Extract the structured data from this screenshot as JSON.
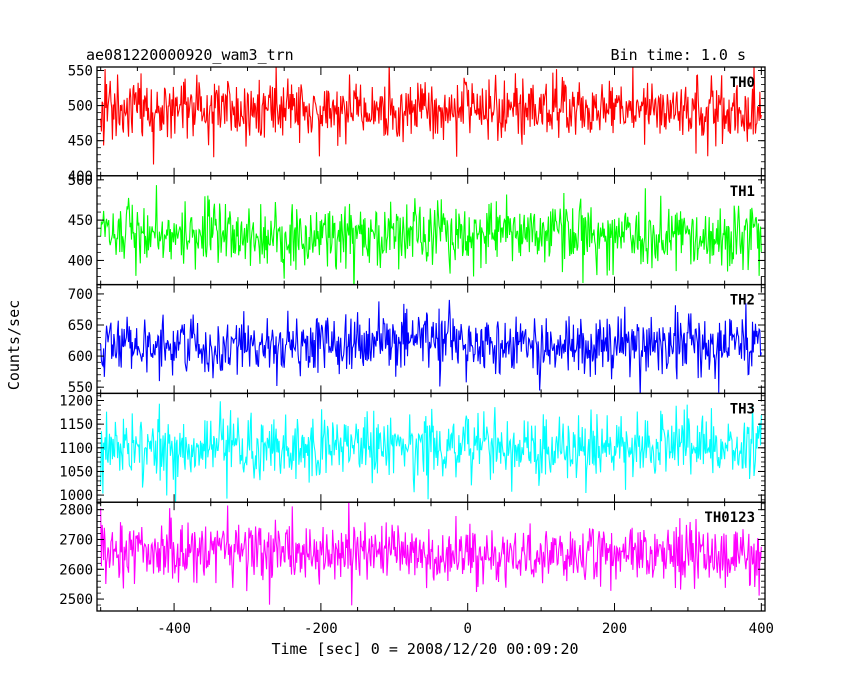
{
  "header": {
    "left_title": "ae081220000920_wam3_trn",
    "right_title": "Bin time: 1.0 s"
  },
  "chart_data": {
    "type": "line",
    "title": "ae081220000920_wam3_trn",
    "subtitle": "Bin time: 1.0 s",
    "xlabel": "Time [sec] 0 = 2008/12/20 00:09:20",
    "ylabel": "Counts/sec",
    "xlim": [
      -505,
      405
    ],
    "x_ticks": [
      "-400",
      "-200",
      "0",
      "200",
      "400"
    ],
    "x_tick_values": [
      -400,
      -200,
      0,
      200,
      400
    ],
    "x_minor_step": 50,
    "series_x_range": [
      -500,
      400
    ],
    "bin_time_s": 1.0,
    "grid": false,
    "panels": [
      {
        "name": "TH0",
        "color": "#ff0000",
        "ylim": [
          400,
          555
        ],
        "y_ticks": [
          "400",
          "450",
          "500",
          "550"
        ],
        "y_tick_values": [
          400,
          450,
          500,
          550
        ],
        "mean": 495,
        "noise_sd": 22
      },
      {
        "name": "TH1",
        "color": "#00ff00",
        "ylim": [
          370,
          505
        ],
        "y_ticks": [
          "400",
          "450",
          "500"
        ],
        "y_tick_values": [
          400,
          450,
          500
        ],
        "mean": 432,
        "noise_sd": 20
      },
      {
        "name": "TH2",
        "color": "#0000ff",
        "ylim": [
          540,
          715
        ],
        "y_ticks": [
          "550",
          "600",
          "650",
          "700"
        ],
        "y_tick_values": [
          550,
          600,
          650,
          700
        ],
        "mean": 620,
        "noise_sd": 25
      },
      {
        "name": "TH3",
        "color": "#00ffff",
        "ylim": [
          985,
          1215
        ],
        "y_ticks": [
          "1000",
          "1050",
          "1100",
          "1150",
          "1200"
        ],
        "y_tick_values": [
          1000,
          1050,
          1100,
          1150,
          1200
        ],
        "mean": 1100,
        "noise_sd": 34
      },
      {
        "name": "TH0123",
        "color": "#ff00ff",
        "ylim": [
          2460,
          2825
        ],
        "y_ticks": [
          "2500",
          "2600",
          "2700",
          "2800"
        ],
        "y_tick_values": [
          2500,
          2600,
          2700,
          2800
        ],
        "mean": 2650,
        "noise_sd": 52
      }
    ]
  }
}
